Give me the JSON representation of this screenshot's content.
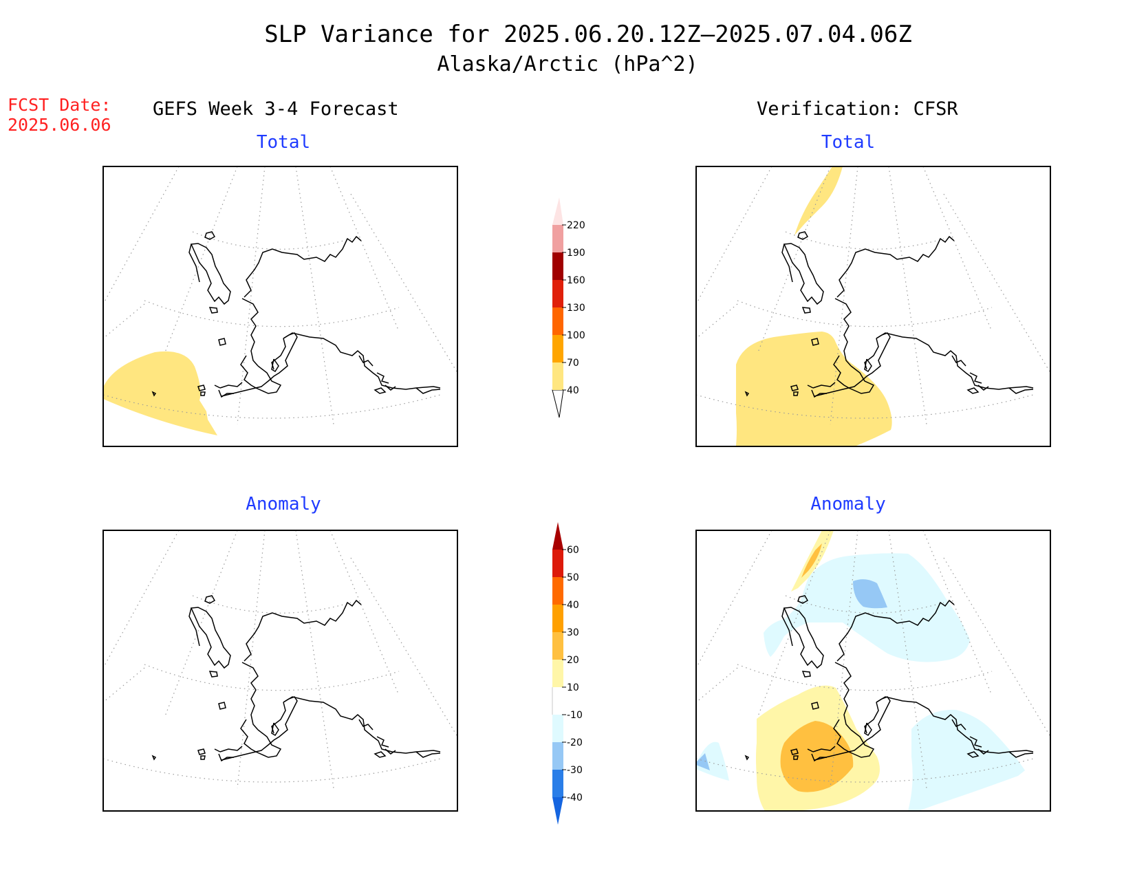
{
  "header": {
    "title": "SLP Variance for 2025.06.20.12Z—2025.07.04.06Z",
    "subtitle": "Alaska/Arctic (hPa^2)",
    "fcst_label": "FCST Date:",
    "fcst_date": "2025.06.06",
    "left_column": "GEFS Week 3-4 Forecast",
    "right_column": "Verification: CFSR"
  },
  "panels": {
    "top_left": "Total",
    "top_right": "Total",
    "bottom_left": "Anomaly",
    "bottom_right": "Anomaly"
  },
  "colorbars": {
    "total": {
      "labels": [
        "40",
        "70",
        "100",
        "130",
        "160",
        "190",
        "220"
      ],
      "colors": [
        "#ffe680",
        "#ffa500",
        "#ff6600",
        "#e0200a",
        "#a00000",
        "#f0a0a0",
        "#fde4e4"
      ]
    },
    "anomaly": {
      "labels": [
        "-40",
        "-30",
        "-20",
        "-10",
        "10",
        "20",
        "30",
        "40",
        "50",
        "60"
      ],
      "colors": [
        "#1565e0",
        "#2a7ee8",
        "#96c8f5",
        "#dffaff",
        "#ffffff",
        "#fff6a8",
        "#ffc040",
        "#ffa000",
        "#ff6a00",
        "#dd1a0a",
        "#a80000"
      ]
    }
  },
  "map": {
    "region": "Alaska/Arctic",
    "fill_colors": {
      "total_40_70": "#ffe680",
      "anom_10_20": "#fff6a8",
      "anom_20_30": "#ffc040",
      "anom_30_40": "#ffa000",
      "anom_neg_10_20": "#dffaff",
      "anom_neg_20_30": "#96c8f5"
    }
  }
}
